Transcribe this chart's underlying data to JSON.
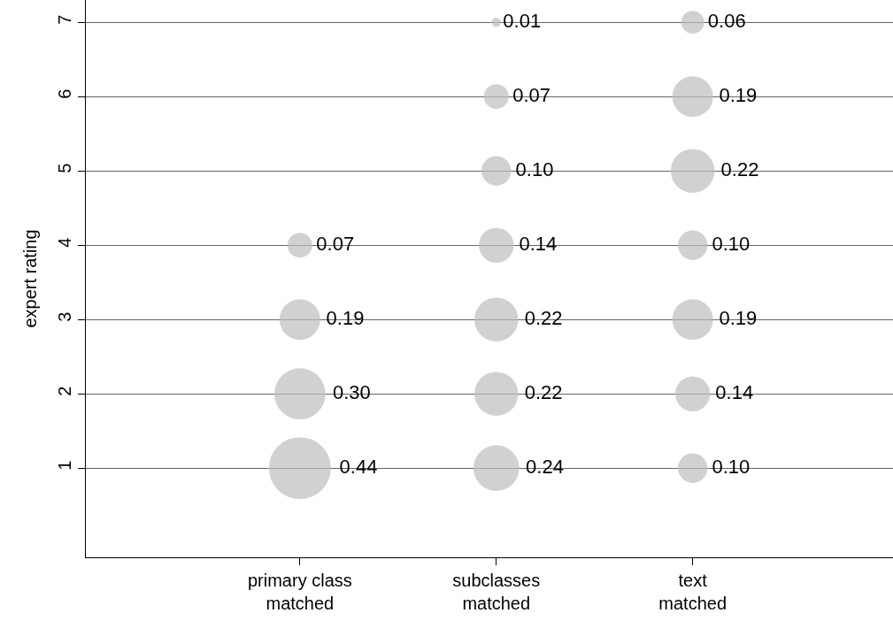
{
  "chart_data": {
    "type": "bubble",
    "ylabel": "expert rating",
    "categories": [
      "primary class\nmatched",
      "subclasses\nmatched",
      "text\nmatched"
    ],
    "ylim": [
      -0.2,
      7.3
    ],
    "yticks": [
      1,
      2,
      3,
      4,
      5,
      6,
      7
    ],
    "grid": "y",
    "marker": "circle",
    "series": [
      {
        "color": "#bebebe",
        "x": [
          "primary class\nmatched",
          "primary class\nmatched",
          "primary class\nmatched",
          "primary class\nmatched"
        ],
        "values": [
          1,
          2,
          3,
          4
        ],
        "sizes": [
          0.44,
          0.3,
          0.19,
          0.07
        ],
        "value_labels": [
          "0.44",
          "0.30",
          "0.19",
          "0.07"
        ]
      },
      {
        "color": "#bebebe",
        "x": [
          "subclasses\nmatched",
          "subclasses\nmatched",
          "subclasses\nmatched",
          "subclasses\nmatched",
          "subclasses\nmatched",
          "subclasses\nmatched",
          "subclasses\nmatched"
        ],
        "values": [
          1,
          2,
          3,
          4,
          5,
          6,
          7
        ],
        "sizes": [
          0.24,
          0.22,
          0.22,
          0.14,
          0.1,
          0.07,
          0.01
        ],
        "value_labels": [
          "0.24",
          "0.22",
          "0.22",
          "0.14",
          "0.10",
          "0.07",
          "0.01"
        ]
      },
      {
        "color": "#bebebe",
        "x": [
          "text\nmatched",
          "text\nmatched",
          "text\nmatched",
          "text\nmatched",
          "text\nmatched",
          "text\nmatched",
          "text\nmatched"
        ],
        "values": [
          1,
          2,
          3,
          4,
          5,
          6,
          7
        ],
        "sizes": [
          0.1,
          0.14,
          0.19,
          0.1,
          0.22,
          0.19,
          0.06
        ],
        "value_labels": [
          "0.10",
          "0.14",
          "0.19",
          "0.10",
          "0.22",
          "0.19",
          "0.06"
        ]
      }
    ]
  }
}
